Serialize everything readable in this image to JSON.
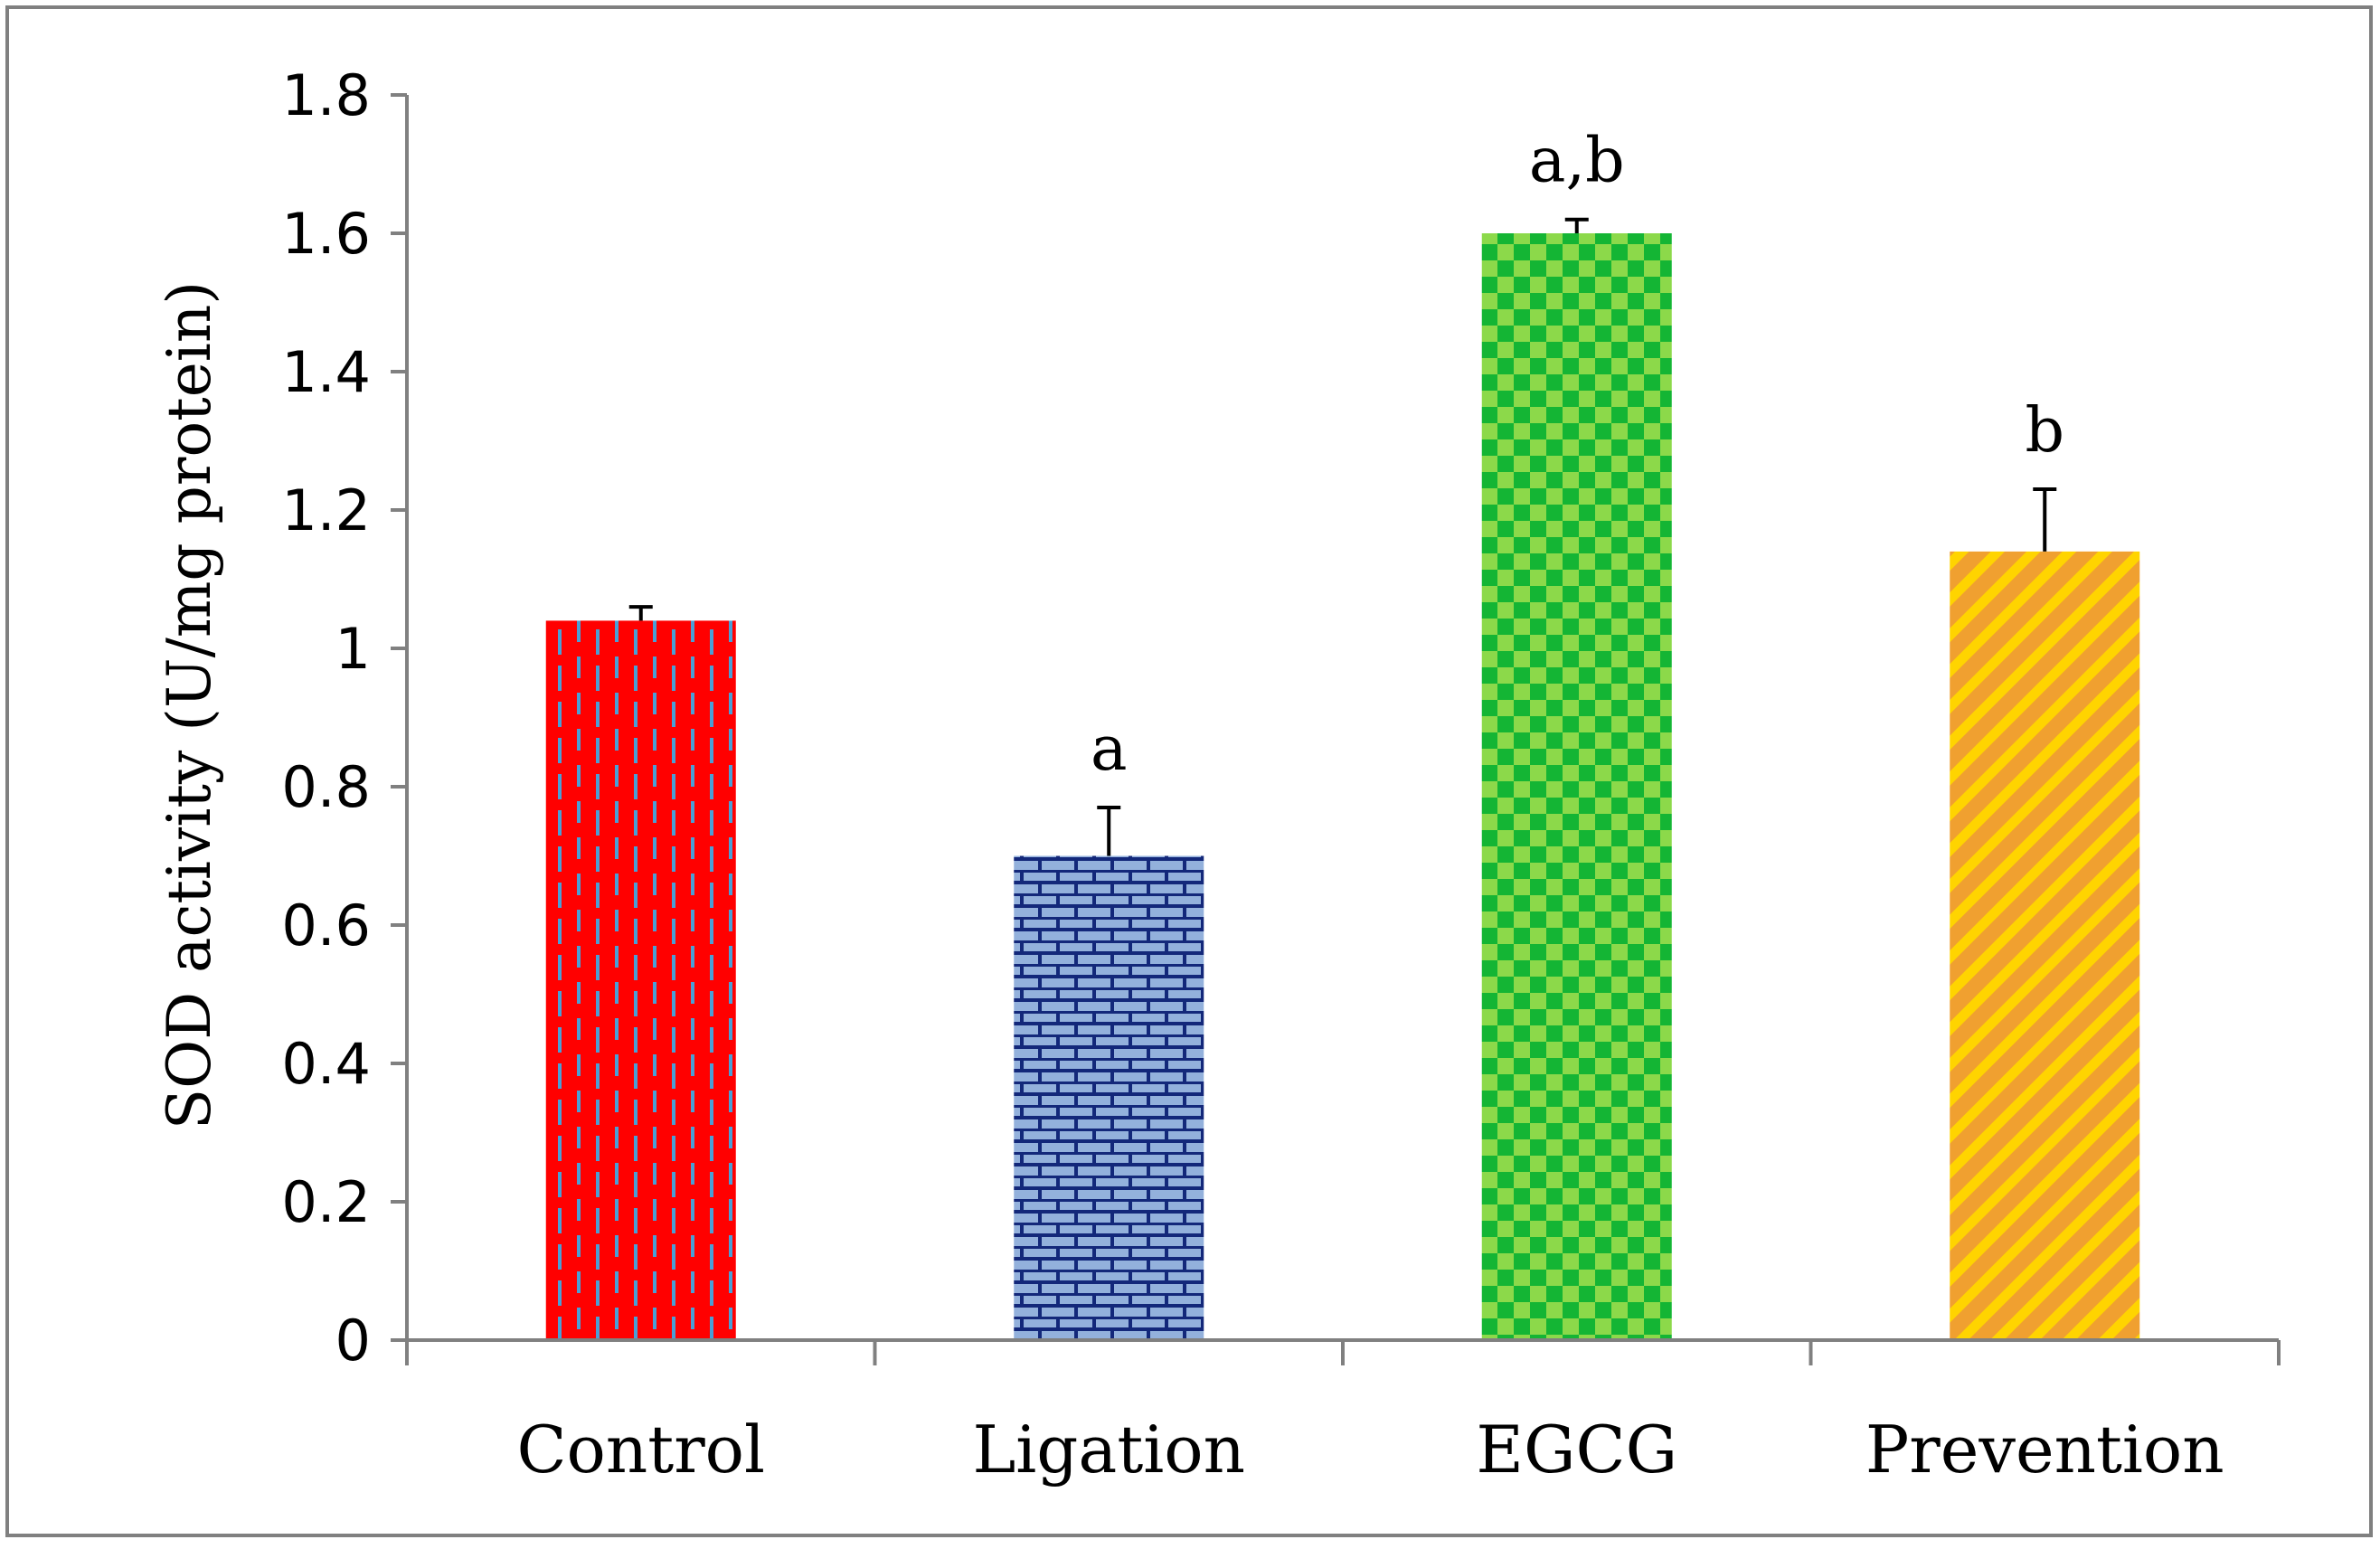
{
  "chart_data": {
    "type": "bar",
    "title": "",
    "xlabel": "",
    "ylabel": "SOD activity (U/mg protein)",
    "categories": [
      "Control",
      "Ligation",
      "EGCG",
      "Prevention"
    ],
    "values": [
      1.04,
      0.7,
      1.6,
      1.14
    ],
    "errors": [
      0.02,
      0.07,
      0.02,
      0.09
    ],
    "significance": [
      "",
      "a",
      "a,b",
      "b"
    ],
    "ylim": [
      0,
      1.8
    ],
    "yticks": [
      0,
      0.2,
      0.4,
      0.6,
      0.8,
      1,
      1.2,
      1.4,
      1.6,
      1.8
    ],
    "ytick_labels": [
      "0",
      "0.2",
      "0.4",
      "0.6",
      "0.8",
      "1",
      "1.2",
      "1.4",
      "1.6",
      "1.8"
    ],
    "grid": false,
    "legend": "none",
    "bar_colors": [
      {
        "base": "#ff0000",
        "accent": "#4a9fd6"
      },
      {
        "base": "#93b1dc",
        "accent": "#13287a"
      },
      {
        "base": "#14b534",
        "accent": "#8cd94a"
      },
      {
        "base": "#f0a030",
        "accent": "#ffd400"
      }
    ],
    "bar_patterns": [
      "dashed-vertical",
      "brick",
      "checker",
      "diagonal-stripes"
    ]
  },
  "colors": {
    "axis": "#808080",
    "frame": "#808080",
    "text": "#000000",
    "error_bar": "#000000"
  }
}
